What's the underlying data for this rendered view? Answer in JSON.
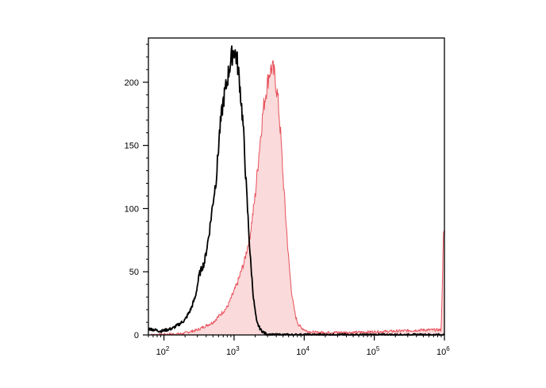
{
  "chart_data": {
    "type": "area",
    "title": "",
    "xlabel": "",
    "ylabel": "",
    "x_scale": "log",
    "xlim": [
      60,
      1000000
    ],
    "ylim": [
      0,
      235
    ],
    "grid": false,
    "legend": "none",
    "x_ticks": [
      {
        "value": 100,
        "base": "10",
        "exp": "2"
      },
      {
        "value": 1000,
        "base": "10",
        "exp": "3"
      },
      {
        "value": 10000,
        "base": "10",
        "exp": "4"
      },
      {
        "value": 100000,
        "base": "10",
        "exp": "5"
      },
      {
        "value": 1000000,
        "base": "10",
        "exp": "6"
      }
    ],
    "y_ticks": [
      0,
      50,
      100,
      150,
      200
    ],
    "series": [
      {
        "style": "line",
        "color": "#000000",
        "x": [
          60,
          90,
          130,
          160,
          200,
          240,
          280,
          320,
          380,
          440,
          500,
          560,
          620,
          700,
          780,
          860,
          940,
          1000,
          1100,
          1200,
          1350,
          1500,
          1700,
          1900,
          2100,
          2400,
          2800,
          3300,
          4000,
          1000000
        ],
        "y": [
          5,
          3,
          5,
          8,
          12,
          20,
          30,
          48,
          58,
          80,
          105,
          125,
          160,
          185,
          198,
          212,
          222,
          226,
          218,
          200,
          165,
          115,
          62,
          28,
          10,
          4,
          1,
          0,
          0,
          0
        ]
      },
      {
        "style": "filled",
        "color": "#e8505b",
        "fill": "#fadada",
        "x": [
          60,
          180,
          300,
          500,
          800,
          1100,
          1400,
          1700,
          2000,
          2300,
          2600,
          2900,
          3200,
          3500,
          3800,
          4200,
          4600,
          5000,
          5500,
          6000,
          6500,
          7000,
          7600,
          8300,
          9500,
          11000,
          14000,
          20000,
          50000,
          200000,
          500000,
          900000,
          970000,
          1000000
        ],
        "y": [
          0,
          1,
          4,
          10,
          22,
          40,
          58,
          80,
          110,
          148,
          178,
          195,
          208,
          212,
          205,
          188,
          160,
          125,
          90,
          60,
          38,
          24,
          14,
          8,
          5,
          3,
          2,
          2,
          2,
          3,
          4,
          4,
          80,
          80
        ]
      }
    ]
  }
}
